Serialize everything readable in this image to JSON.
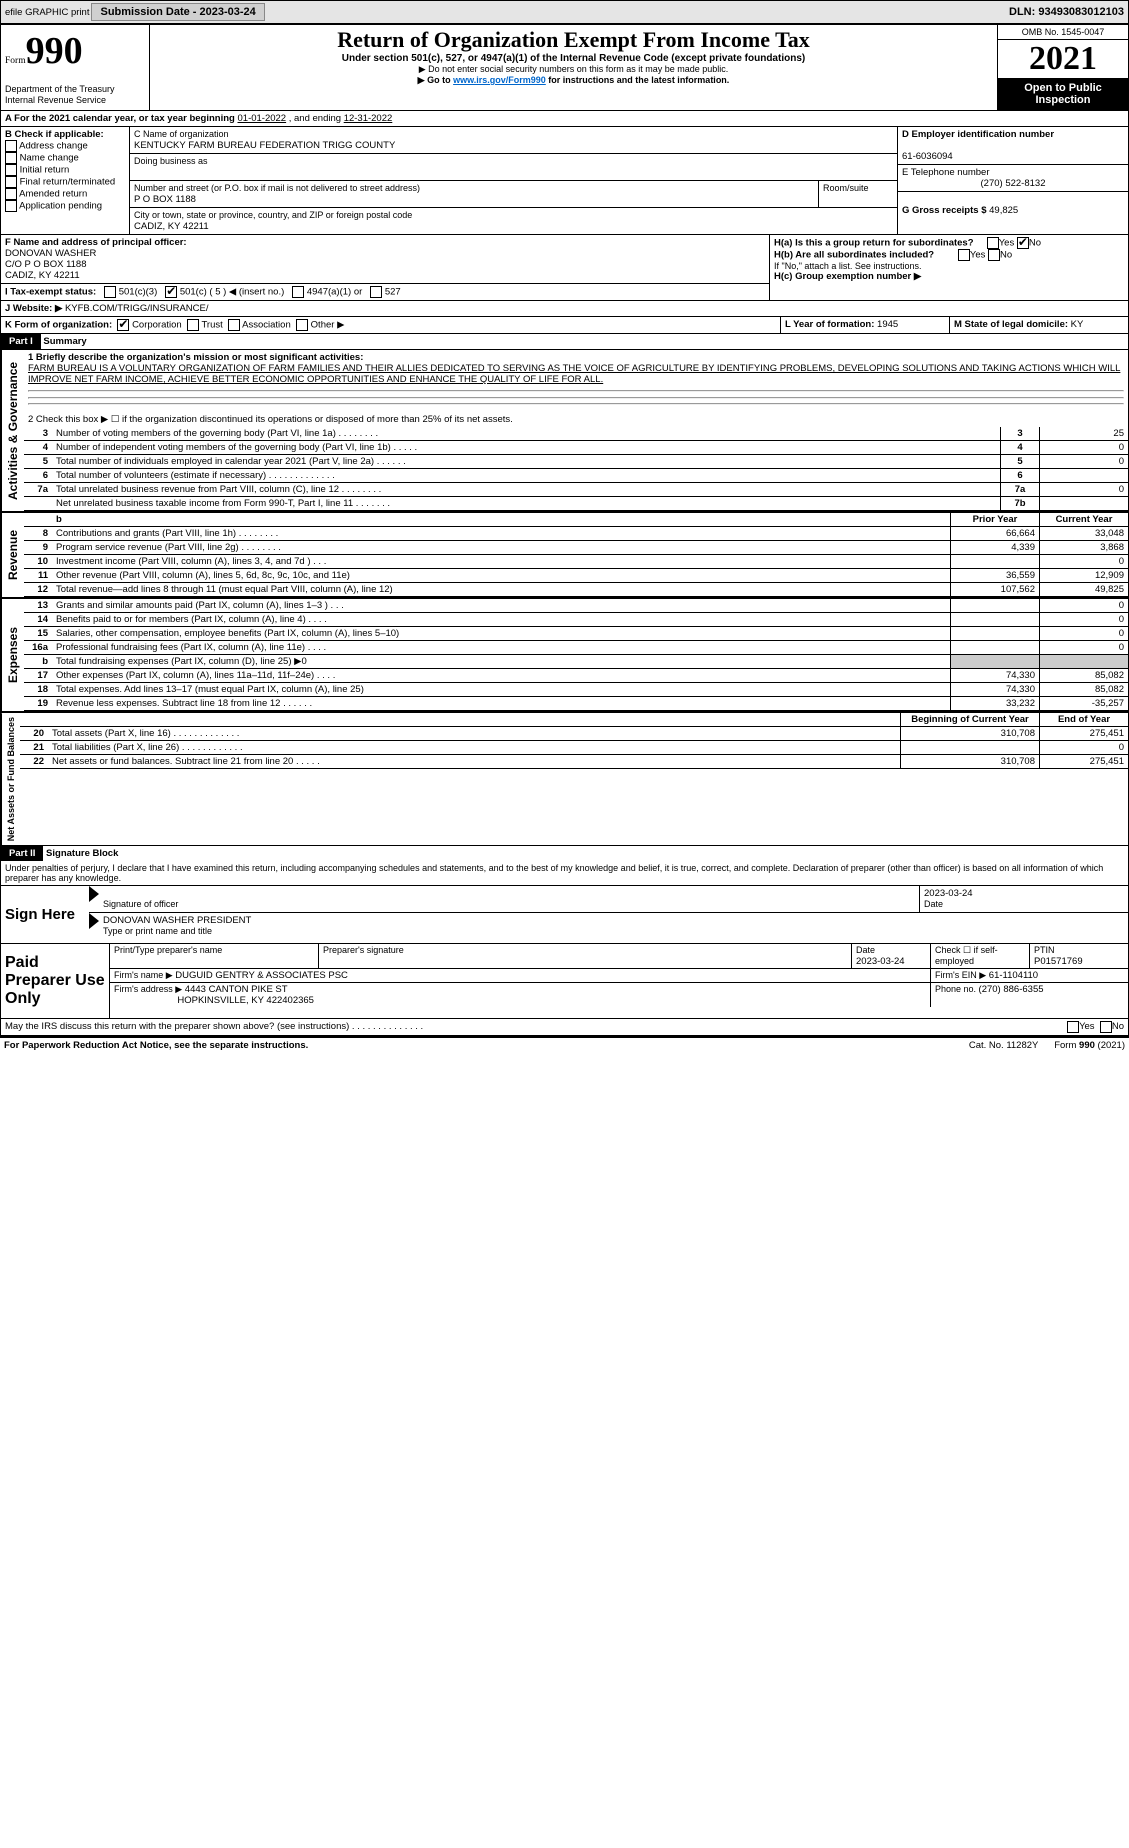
{
  "header": {
    "efile": "efile GRAPHIC print",
    "submission_label": "Submission Date - 2023-03-24",
    "dln": "DLN: 93493083012103"
  },
  "form_id": {
    "form_word": "Form",
    "number": "990",
    "dept": "Department of the Treasury",
    "irs": "Internal Revenue Service"
  },
  "title_block": {
    "title": "Return of Organization Exempt From Income Tax",
    "sub1": "Under section 501(c), 527, or 4947(a)(1) of the Internal Revenue Code (except private foundations)",
    "sub2": "▶ Do not enter social security numbers on this form as it may be made public.",
    "sub3_pre": "▶ Go to ",
    "sub3_link": "www.irs.gov/Form990",
    "sub3_post": " for instructions and the latest information."
  },
  "right_header": {
    "omb": "OMB No. 1545-0047",
    "year": "2021",
    "open": "Open to Public Inspection"
  },
  "period": {
    "label_a": "A For the 2021 calendar year, or tax year beginning ",
    "begin": "01-01-2022",
    "mid": " , and ending ",
    "end": "12-31-2022"
  },
  "sectionB": {
    "label": "B Check if applicable:",
    "items": [
      "Address change",
      "Name change",
      "Initial return",
      "Final return/terminated",
      "Amended return",
      "Application pending"
    ]
  },
  "sectionC": {
    "name_label": "C Name of organization",
    "name": "KENTUCKY FARM BUREAU FEDERATION TRIGG COUNTY",
    "dba_label": "Doing business as",
    "addr_label": "Number and street (or P.O. box if mail is not delivered to street address)",
    "room_label": "Room/suite",
    "addr": "P O BOX 1188",
    "city_label": "City or town, state or province, country, and ZIP or foreign postal code",
    "city": "CADIZ, KY  42211"
  },
  "sectionD": {
    "label": "D Employer identification number",
    "value": "61-6036094"
  },
  "sectionE": {
    "label": "E Telephone number",
    "value": "(270) 522-8132"
  },
  "sectionG": {
    "label": "G Gross receipts $ ",
    "value": "49,825"
  },
  "sectionF": {
    "label": "F Name and address of principal officer:",
    "name": "DONOVAN WASHER",
    "line2": "C/O P O BOX 1188",
    "line3": "CADIZ, KY  42211"
  },
  "sectionH": {
    "a": "H(a)  Is this a group return for subordinates?",
    "b": "H(b)  Are all subordinates included?",
    "b_note": "If \"No,\" attach a list. See instructions.",
    "c": "H(c)  Group exemption number ▶",
    "yes": "Yes",
    "no": "No"
  },
  "sectionI": {
    "label": "I  Tax-exempt status:",
    "c3": "501(c)(3)",
    "c": "501(c) ( 5 ) ◀ (insert no.)",
    "a1": "4947(a)(1) or",
    "s527": "527"
  },
  "sectionJ": {
    "label": "J  Website: ▶",
    "value": "KYFB.COM/TRIGG/INSURANCE/"
  },
  "sectionK": {
    "label": "K Form of organization:",
    "opts": [
      "Corporation",
      "Trust",
      "Association",
      "Other ▶"
    ]
  },
  "sectionL": {
    "label": "L Year of formation: ",
    "value": "1945"
  },
  "sectionM": {
    "label": "M State of legal domicile: ",
    "value": "KY"
  },
  "part1": {
    "header": "Part I",
    "title": "Summary",
    "line1_label": "1  Briefly describe the organization's mission or most significant activities:",
    "mission": "FARM BUREAU IS A VOLUNTARY ORGANIZATION OF FARM FAMILIES AND THEIR ALLIES DEDICATED TO SERVING AS THE VOICE OF AGRICULTURE BY IDENTIFYING PROBLEMS, DEVELOPING SOLUTIONS AND TAKING ACTIONS WHICH WILL IMPROVE NET FARM INCOME, ACHIEVE BETTER ECONOMIC OPPORTUNITIES AND ENHANCE THE QUALITY OF LIFE FOR ALL.",
    "line2": "2  Check this box ▶ ☐ if the organization discontinued its operations or disposed of more than 25% of its net assets.",
    "gov_label": "Activities & Governance",
    "rev_label": "Revenue",
    "exp_label": "Expenses",
    "net_label": "Net Assets or Fund Balances",
    "rows_gov": [
      {
        "n": "3",
        "t": "Number of voting members of the governing body (Part VI, line 1a)   .    .    .    .    .    .    .    .",
        "box": "3",
        "v": "25"
      },
      {
        "n": "4",
        "t": "Number of independent voting members of the governing body (Part VI, line 1b)   .    .    .    .    .",
        "box": "4",
        "v": "0"
      },
      {
        "n": "5",
        "t": "Total number of individuals employed in calendar year 2021 (Part V, line 2a)   .    .    .    .    .    .",
        "box": "5",
        "v": "0"
      },
      {
        "n": "6",
        "t": "Total number of volunteers (estimate if necessary)   .    .    .    .    .    .    .    .    .    .    .    .    .",
        "box": "6",
        "v": ""
      },
      {
        "n": "7a",
        "t": "Total unrelated business revenue from Part VIII, column (C), line 12   .    .    .    .    .    .    .    .",
        "box": "7a",
        "v": "0"
      },
      {
        "n": "",
        "t": "Net unrelated business taxable income from Form 990-T, Part I, line 11   .    .    .    .    .    .    .",
        "box": "7b",
        "v": ""
      }
    ],
    "col_prior": "Prior Year",
    "col_current": "Current Year",
    "rows_rev": [
      {
        "n": "8",
        "t": "Contributions and grants (Part VIII, line 1h)   .    .    .    .    .    .    .    .",
        "p": "66,664",
        "c": "33,048"
      },
      {
        "n": "9",
        "t": "Program service revenue (Part VIII, line 2g)   .    .    .    .    .    .    .    .",
        "p": "4,339",
        "c": "3,868"
      },
      {
        "n": "10",
        "t": "Investment income (Part VIII, column (A), lines 3, 4, and 7d )   .    .    .",
        "p": "",
        "c": "0"
      },
      {
        "n": "11",
        "t": "Other revenue (Part VIII, column (A), lines 5, 6d, 8c, 9c, 10c, and 11e)",
        "p": "36,559",
        "c": "12,909"
      },
      {
        "n": "12",
        "t": "Total revenue—add lines 8 through 11 (must equal Part VIII, column (A), line 12)",
        "p": "107,562",
        "c": "49,825"
      }
    ],
    "rows_exp": [
      {
        "n": "13",
        "t": "Grants and similar amounts paid (Part IX, column (A), lines 1–3 )   .    .    .",
        "p": "",
        "c": "0"
      },
      {
        "n": "14",
        "t": "Benefits paid to or for members (Part IX, column (A), line 4)   .    .    .    .",
        "p": "",
        "c": "0"
      },
      {
        "n": "15",
        "t": "Salaries, other compensation, employee benefits (Part IX, column (A), lines 5–10)",
        "p": "",
        "c": "0"
      },
      {
        "n": "16a",
        "t": "Professional fundraising fees (Part IX, column (A), line 11e)   .    .    .    .",
        "p": "",
        "c": "0"
      },
      {
        "n": "b",
        "t": "Total fundraising expenses (Part IX, column (D), line 25) ▶0",
        "p": "grey",
        "c": "grey"
      },
      {
        "n": "17",
        "t": "Other expenses (Part IX, column (A), lines 11a–11d, 11f–24e)   .    .    .    .",
        "p": "74,330",
        "c": "85,082"
      },
      {
        "n": "18",
        "t": "Total expenses. Add lines 13–17 (must equal Part IX, column (A), line 25)",
        "p": "74,330",
        "c": "85,082"
      },
      {
        "n": "19",
        "t": "Revenue less expenses. Subtract line 18 from line 12   .    .    .    .    .    .",
        "p": "33,232",
        "c": "-35,257"
      }
    ],
    "col_begin": "Beginning of Current Year",
    "col_end": "End of Year",
    "rows_net": [
      {
        "n": "20",
        "t": "Total assets (Part X, line 16)   .    .    .    .    .    .    .    .    .    .    .    .    .",
        "p": "310,708",
        "c": "275,451"
      },
      {
        "n": "21",
        "t": "Total liabilities (Part X, line 26)   .    .    .    .    .    .    .    .    .    .    .    .",
        "p": "",
        "c": "0"
      },
      {
        "n": "22",
        "t": "Net assets or fund balances. Subtract line 21 from line 20   .    .    .    .    .",
        "p": "310,708",
        "c": "275,451"
      }
    ]
  },
  "part2": {
    "header": "Part II",
    "title": "Signature Block",
    "declaration": "Under penalties of perjury, I declare that I have examined this return, including accompanying schedules and statements, and to the best of my knowledge and belief, it is true, correct, and complete. Declaration of preparer (other than officer) is based on all information of which preparer has any knowledge.",
    "sign_here": "Sign Here",
    "sig_officer": "Signature of officer",
    "sig_date": "2023-03-24",
    "date_label": "Date",
    "officer_name": "DONOVAN WASHER  PRESIDENT",
    "type_name": "Type or print name and title",
    "paid": "Paid Preparer Use Only",
    "p_name_label": "Print/Type preparer's name",
    "p_sig_label": "Preparer's signature",
    "p_date_label": "Date",
    "p_date": "2023-03-24",
    "p_check": "Check ☐ if self-employed",
    "ptin_label": "PTIN",
    "ptin": "P01571769",
    "firm_name_label": "Firm's name    ▶",
    "firm_name": "DUGUID GENTRY & ASSOCIATES PSC",
    "firm_ein_label": "Firm's EIN ▶",
    "firm_ein": "61-1104110",
    "firm_addr_label": "Firm's address ▶",
    "firm_addr1": "4443 CANTON PIKE ST",
    "firm_addr2": "HOPKINSVILLE, KY  422402365",
    "phone_label": "Phone no. ",
    "phone": "(270) 886-6355",
    "discuss": "May the IRS discuss this return with the preparer shown above? (see instructions)   .    .    .    .    .    .    .    .    .    .    .    .    .    .",
    "yes": "Yes",
    "no": "No"
  },
  "footer": {
    "pra": "For Paperwork Reduction Act Notice, see the separate instructions.",
    "cat": "Cat. No. 11282Y",
    "form": "Form 990 (2021)"
  }
}
